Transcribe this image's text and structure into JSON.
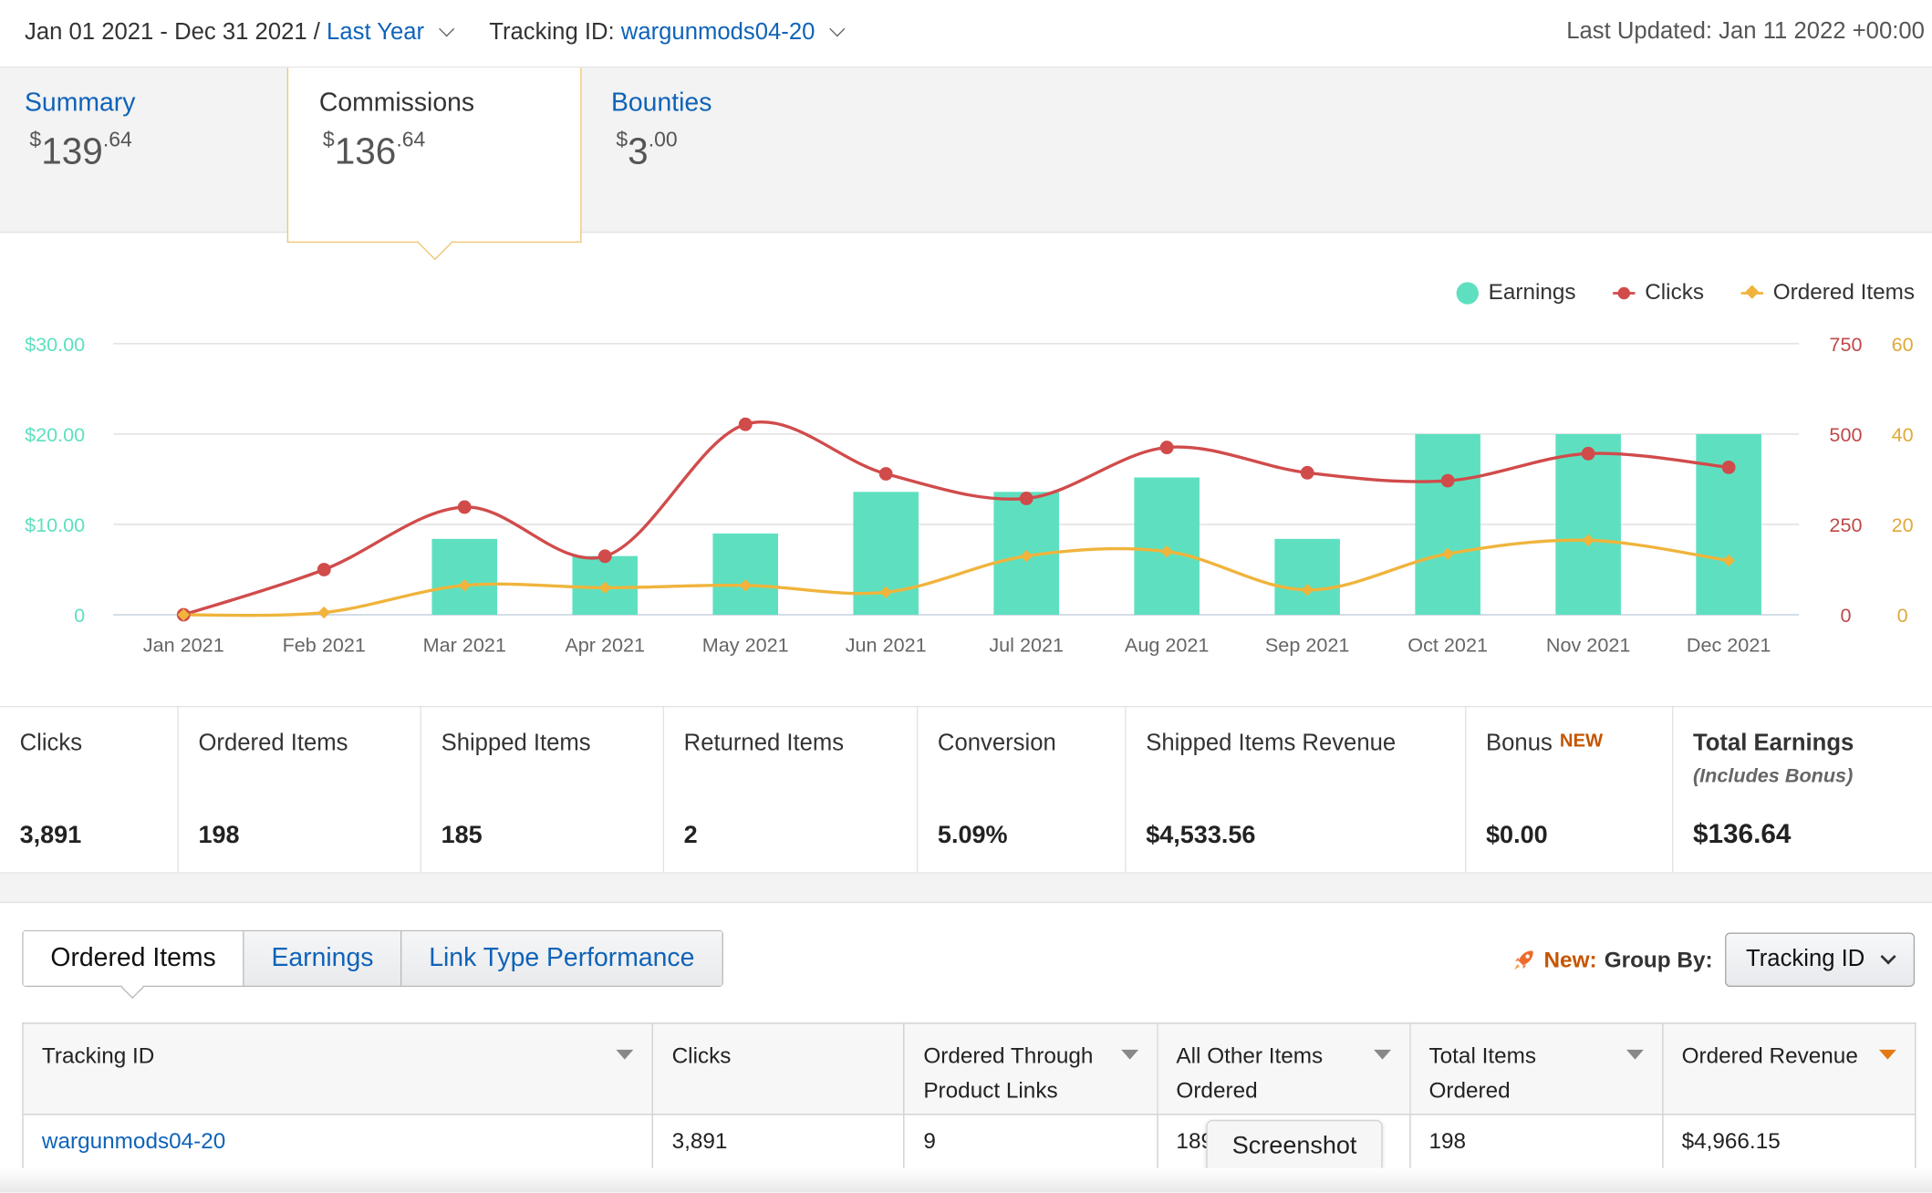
{
  "header": {
    "date_range": "Jan 01 2021 - Dec 31 2021",
    "separator": " / ",
    "range_preset": "Last Year",
    "tracking_label": "Tracking ID: ",
    "tracking_id": "wargunmods04-20",
    "last_updated": "Last Updated: Jan 11 2022 +00:00"
  },
  "summary_tabs": [
    {
      "label": "Summary",
      "currency": "$",
      "whole": "139",
      "cents": ".64"
    },
    {
      "label": "Commissions",
      "currency": "$",
      "whole": "136",
      "cents": ".64",
      "active": true
    },
    {
      "label": "Bounties",
      "currency": "$",
      "whole": "3",
      "cents": ".00"
    }
  ],
  "legend": {
    "earnings": "Earnings",
    "clicks": "Clicks",
    "ordered_items": "Ordered Items"
  },
  "colors": {
    "earnings": "#5ee0c0",
    "clicks": "#d14b4b",
    "ordered_items": "#f0b43c",
    "link": "#0f63b8",
    "accent_new": "#c45500"
  },
  "chart_data": {
    "type": "bar",
    "categories": [
      "Jan 2021",
      "Feb 2021",
      "Mar 2021",
      "Apr 2021",
      "May 2021",
      "Jun 2021",
      "Jul 2021",
      "Aug 2021",
      "Sep 2021",
      "Oct 2021",
      "Nov 2021",
      "Dec 2021"
    ],
    "series": [
      {
        "name": "Earnings",
        "type": "bar",
        "axis": "left",
        "values": [
          0,
          0,
          8.4,
          6.5,
          9.0,
          13.6,
          13.6,
          15.2,
          8.4,
          20.0,
          20.0,
          20.0
        ]
      },
      {
        "name": "Clicks",
        "type": "line",
        "axis": "right-1",
        "values": [
          0,
          125,
          298,
          162,
          527,
          390,
          322,
          463,
          393,
          371,
          446,
          408
        ]
      },
      {
        "name": "Ordered Items",
        "type": "line",
        "axis": "right-2",
        "values": [
          0,
          0.5,
          6.5,
          6.0,
          6.5,
          5.0,
          13.0,
          14.0,
          5.5,
          13.5,
          16.5,
          12.0
        ]
      }
    ],
    "y_left": {
      "ticks": [
        "0",
        "$10.00",
        "$20.00",
        "$30.00"
      ],
      "max": 30
    },
    "y_right_1": {
      "ticks": [
        "0",
        "250",
        "500",
        "750"
      ],
      "max": 750
    },
    "y_right_2": {
      "ticks": [
        "0",
        "20",
        "40",
        "60"
      ],
      "max": 60
    },
    "grid": true,
    "legend_position": "top-right"
  },
  "metrics": [
    {
      "label": "Clicks",
      "value": "3,891"
    },
    {
      "label": "Ordered Items",
      "value": "198"
    },
    {
      "label": "Shipped Items",
      "value": "185"
    },
    {
      "label": "Returned Items",
      "value": "2"
    },
    {
      "label": "Conversion",
      "value": "5.09%"
    },
    {
      "label": "Shipped Items Revenue",
      "value": "$4,533.56"
    },
    {
      "label": "Bonus",
      "badge": "NEW",
      "value": "$0.00"
    },
    {
      "label": "Total Earnings",
      "sub": "(Includes Bonus)",
      "value": "$136.64"
    }
  ],
  "table_tabs": [
    "Ordered Items",
    "Earnings",
    "Link Type Performance"
  ],
  "group_by": {
    "new_label": "New:",
    "label": "Group By:",
    "selected": "Tracking ID",
    "icon": "rocket-icon"
  },
  "table": {
    "columns": [
      "Tracking ID",
      "Clicks",
      "Ordered Through Product Links",
      "All Other Items Ordered",
      "Total Items Ordered",
      "Ordered Revenue"
    ],
    "rows": [
      [
        "wargunmods04-20",
        "3,891",
        "9",
        "189",
        "198",
        "$4,966.15"
      ]
    ]
  },
  "tooltip": "Screenshot"
}
